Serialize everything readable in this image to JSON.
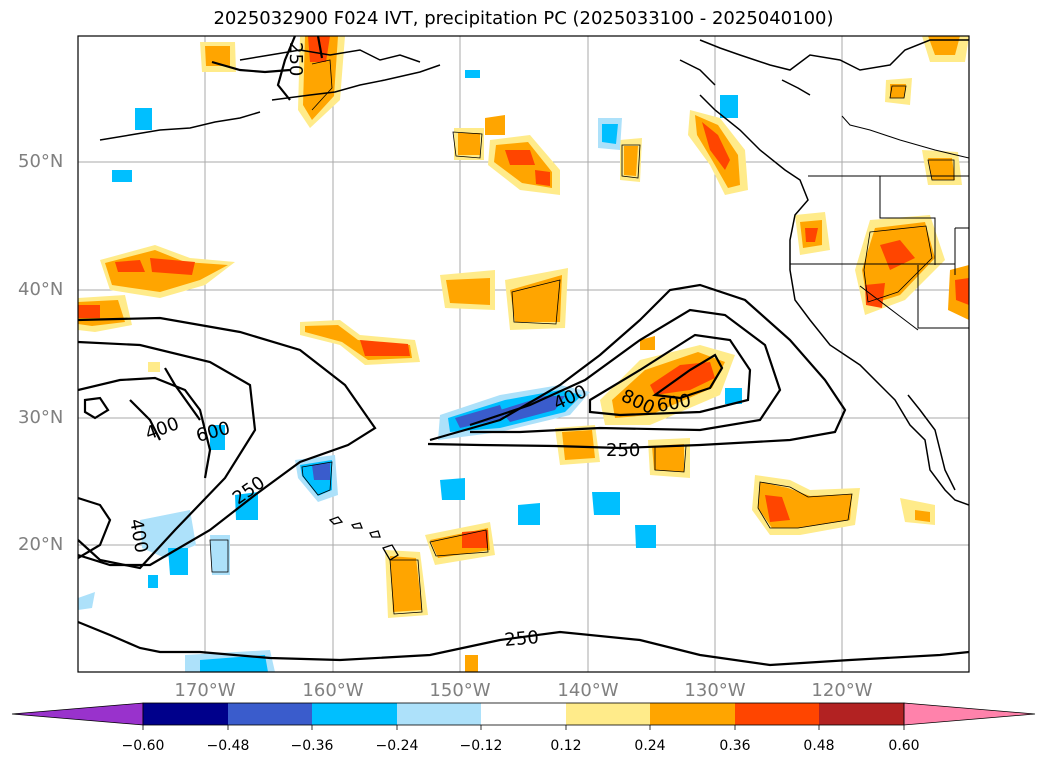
{
  "title": "2025032900 F024 IVT, precipitation PC (2025033100 - 2025040100)",
  "lat_labels": [
    "50°N",
    "40°N",
    "30°N",
    "20°N"
  ],
  "lon_labels": [
    "170°W",
    "160°W",
    "150°W",
    "140°W",
    "130°W",
    "120°W"
  ],
  "ivt_contour_labels": [
    "250",
    "400",
    "600",
    "800"
  ],
  "colorbar": {
    "ticks": [
      "−0.60",
      "−0.48",
      "−0.36",
      "−0.24",
      "−0.12",
      "0.12",
      "0.24",
      "0.36",
      "0.48",
      "0.60"
    ],
    "colors": [
      "#9932CC",
      "#00008B",
      "#3A5CCC",
      "#00BFFF",
      "#ADE1FA",
      "#FFFFFF",
      "#FFEB8A",
      "#FFA500",
      "#FF4500",
      "#B22222",
      "#FF82AB"
    ]
  }
}
